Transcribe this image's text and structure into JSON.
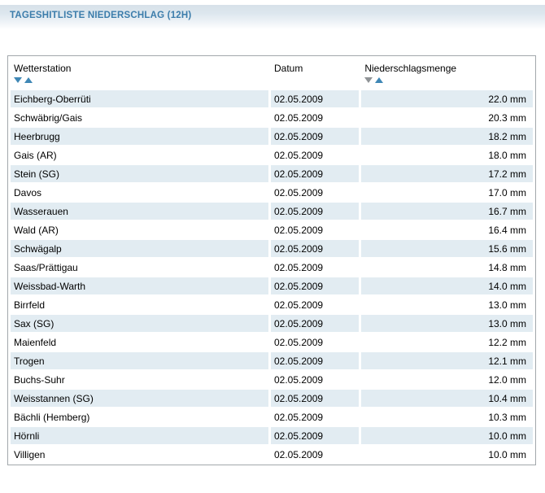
{
  "page": {
    "title": "TAGESHITLISTE NIEDERSCHLAG (12H)"
  },
  "table": {
    "columns": {
      "station": {
        "label": "Wetterstation",
        "sortable": true,
        "sort_state": "none"
      },
      "date": {
        "label": "Datum",
        "sortable": false
      },
      "amount": {
        "label": "Niederschlagsmenge",
        "sortable": true,
        "sort_state": "descending"
      }
    },
    "rows": [
      {
        "station": "Eichberg-Oberrüti",
        "date": "02.05.2009",
        "amount": "22.0 mm"
      },
      {
        "station": "Schwäbrig/Gais",
        "date": "02.05.2009",
        "amount": "20.3 mm"
      },
      {
        "station": "Heerbrugg",
        "date": "02.05.2009",
        "amount": "18.2 mm"
      },
      {
        "station": "Gais (AR)",
        "date": "02.05.2009",
        "amount": "18.0 mm"
      },
      {
        "station": "Stein (SG)",
        "date": "02.05.2009",
        "amount": "17.2 mm"
      },
      {
        "station": "Davos",
        "date": "02.05.2009",
        "amount": "17.0 mm"
      },
      {
        "station": "Wasserauen",
        "date": "02.05.2009",
        "amount": "16.7 mm"
      },
      {
        "station": "Wald (AR)",
        "date": "02.05.2009",
        "amount": "16.4 mm"
      },
      {
        "station": "Schwägalp",
        "date": "02.05.2009",
        "amount": "15.6 mm"
      },
      {
        "station": "Saas/Prättigau",
        "date": "02.05.2009",
        "amount": "14.8 mm"
      },
      {
        "station": "Weissbad-Warth",
        "date": "02.05.2009",
        "amount": "14.0 mm"
      },
      {
        "station": "Birrfeld",
        "date": "02.05.2009",
        "amount": "13.0 mm"
      },
      {
        "station": "Sax (SG)",
        "date": "02.05.2009",
        "amount": "13.0 mm"
      },
      {
        "station": "Maienfeld",
        "date": "02.05.2009",
        "amount": "12.2 mm"
      },
      {
        "station": "Trogen",
        "date": "02.05.2009",
        "amount": "12.1 mm"
      },
      {
        "station": "Buchs-Suhr",
        "date": "02.05.2009",
        "amount": "12.0 mm"
      },
      {
        "station": "Weisstannen (SG)",
        "date": "02.05.2009",
        "amount": "10.4 mm"
      },
      {
        "station": "Bächli (Hemberg)",
        "date": "02.05.2009",
        "amount": "10.3 mm"
      },
      {
        "station": "Hörnli",
        "date": "02.05.2009",
        "amount": "10.0 mm"
      },
      {
        "station": "Villigen",
        "date": "02.05.2009",
        "amount": "10.0 mm"
      }
    ]
  },
  "colors": {
    "title_color": "#3c7dab",
    "band_gradient_top": "#d7e1e9",
    "row_alt_background": "#e2ecf2",
    "table_border": "#a2a8ac",
    "sort_arrow_blue": "#3f87b5",
    "sort_arrow_gray_active": "#8f9396"
  }
}
